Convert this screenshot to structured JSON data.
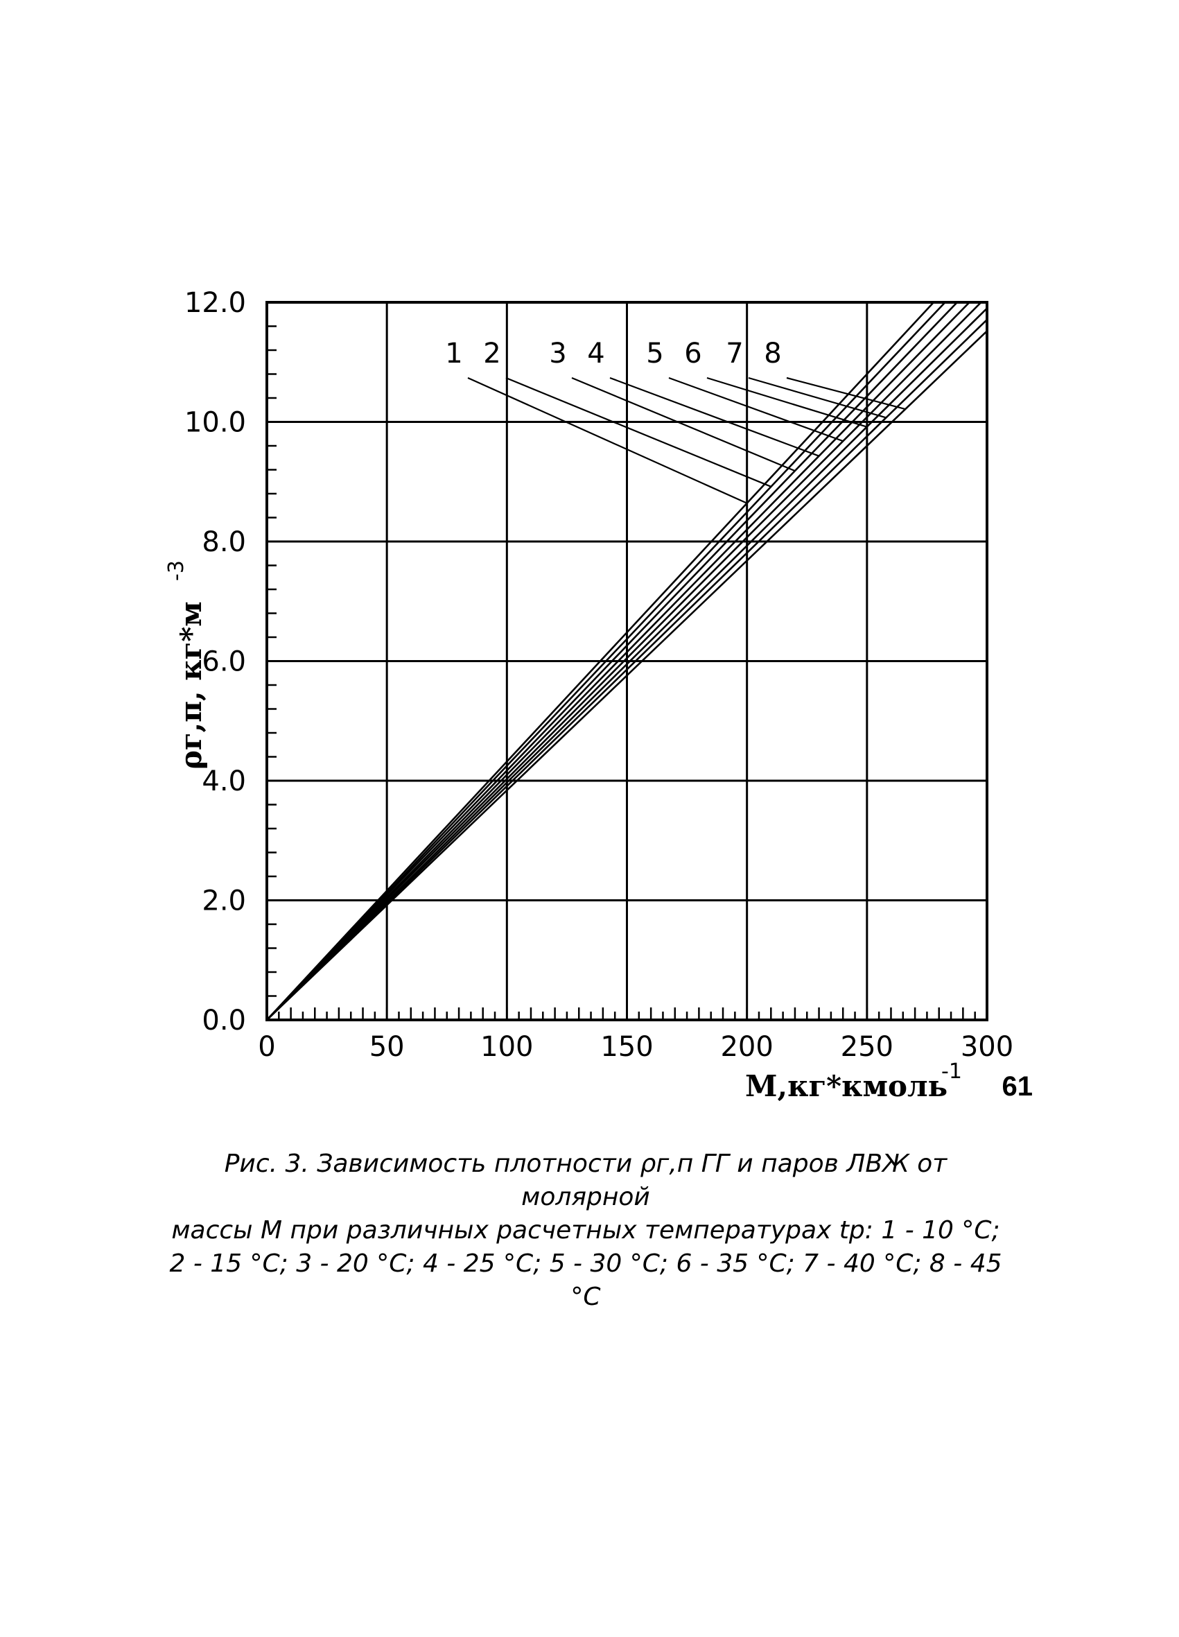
{
  "chart_data": {
    "type": "line",
    "title": "",
    "xlabel": "М,кг*кмоль",
    "xlabel_exponent": "-1",
    "ylabel": "ρг,п, кг*м",
    "ylabel_exponent": "-3",
    "xlim": [
      0,
      300
    ],
    "ylim": [
      0,
      12
    ],
    "x_ticks": [
      "0",
      "50",
      "100",
      "150",
      "200",
      "250",
      "300"
    ],
    "y_ticks": [
      "0.0",
      "2.0",
      "4.0",
      "6.0",
      "8.0",
      "10.0",
      "12.0"
    ],
    "grid": true,
    "x": [
      0,
      50,
      100,
      150,
      200,
      250,
      300
    ],
    "series": [
      {
        "name": "1",
        "values": [
          0,
          2.16,
          4.32,
          6.48,
          8.64,
          10.8,
          12.96
        ]
      },
      {
        "name": "2",
        "values": [
          0,
          2.12,
          4.25,
          6.37,
          8.49,
          10.62,
          12.74
        ]
      },
      {
        "name": "3",
        "values": [
          0,
          2.09,
          4.17,
          6.26,
          8.35,
          10.43,
          12.52
        ]
      },
      {
        "name": "4",
        "values": [
          0,
          2.05,
          4.1,
          6.15,
          8.2,
          10.25,
          12.3
        ]
      },
      {
        "name": "5",
        "values": [
          0,
          2.02,
          4.03,
          6.05,
          8.07,
          10.08,
          12.1
        ]
      },
      {
        "name": "6",
        "values": [
          0,
          1.98,
          3.97,
          5.95,
          7.93,
          9.92,
          11.9
        ]
      },
      {
        "name": "7",
        "values": [
          0,
          1.95,
          3.91,
          5.86,
          7.81,
          9.76,
          11.71
        ]
      },
      {
        "name": "8",
        "values": [
          0,
          1.92,
          3.84,
          5.76,
          7.68,
          9.6,
          11.52
        ]
      }
    ],
    "annotations": [
      "1",
      "2",
      "3",
      "4",
      "5",
      "6",
      "7",
      "8"
    ]
  },
  "caption": {
    "line1": "Рис. 3. Зависимость плотности ρг,п ГГ и паров ЛВЖ от молярной",
    "line2": "массы М при различных расчетных температурах tр: 1 - 10 °С;",
    "line3": "2 - 15 °С; 3 - 20 °С; 4 - 25 °С; 5 - 30 °С; 6 - 35 °С; 7 - 40 °С; 8 - 45 °С"
  },
  "page_number": "61"
}
